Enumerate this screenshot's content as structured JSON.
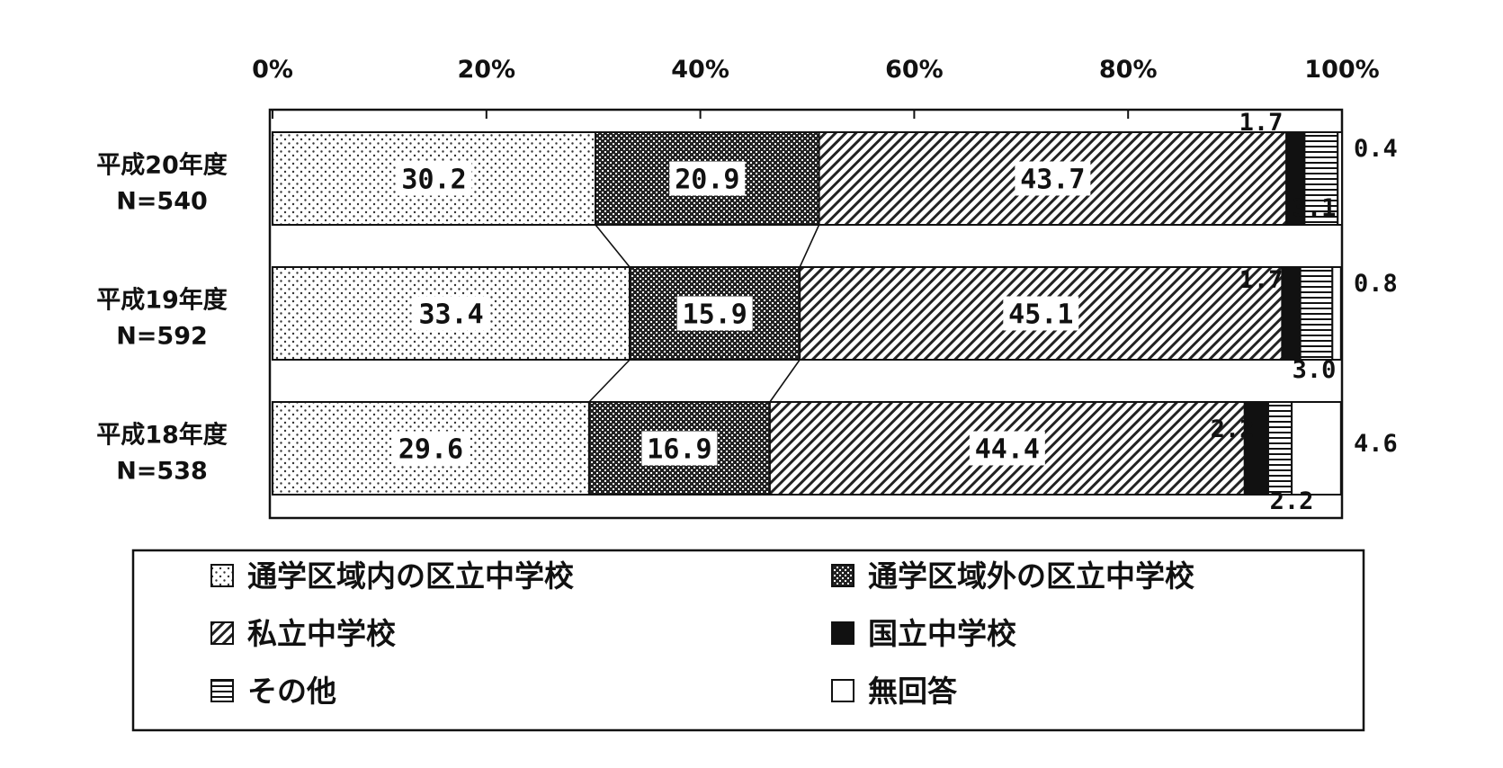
{
  "chart_data": {
    "type": "bar",
    "orientation": "horizontal-stacked-100",
    "title": "",
    "xlabel": "",
    "ylabel": "",
    "xlim": [
      0,
      100
    ],
    "x_ticks": [
      "0%",
      "20%",
      "40%",
      "60%",
      "80%",
      "100%"
    ],
    "categories": [
      {
        "label": "平成20年度",
        "n": "N=540"
      },
      {
        "label": "平成19年度",
        "n": "N=592"
      },
      {
        "label": "平成18年度",
        "n": "N=538"
      }
    ],
    "series": [
      {
        "name": "通学区域内の区立中学校",
        "pattern": "light-dots",
        "values": [
          30.2,
          33.4,
          29.6
        ],
        "labels": [
          "30.2",
          "33.4",
          "29.6"
        ]
      },
      {
        "name": "通学区域外の区立中学校",
        "pattern": "dense-check",
        "values": [
          20.9,
          15.9,
          16.9
        ],
        "labels": [
          "20.9",
          "15.9",
          "16.9"
        ]
      },
      {
        "name": "私立中学校",
        "pattern": "diagonal-hatch",
        "values": [
          43.7,
          45.1,
          44.4
        ],
        "labels": [
          "43.7",
          "45.1",
          "44.4"
        ]
      },
      {
        "name": "国立中学校",
        "pattern": "solid-black",
        "values": [
          1.7,
          1.7,
          2.2
        ],
        "labels": [
          "1.7",
          "1.7",
          "2.2"
        ]
      },
      {
        "name": "その他",
        "pattern": "horizontal-lines",
        "values": [
          3.1,
          3.0,
          2.2
        ],
        "labels": [
          "3.1",
          "3.0",
          "2.2"
        ]
      },
      {
        "name": "無回答",
        "pattern": "blank",
        "values": [
          0.4,
          0.8,
          4.6
        ],
        "labels": [
          "0.4",
          "0.8",
          "4.6"
        ]
      }
    ],
    "legend_placement": "bottom",
    "grid": false
  }
}
